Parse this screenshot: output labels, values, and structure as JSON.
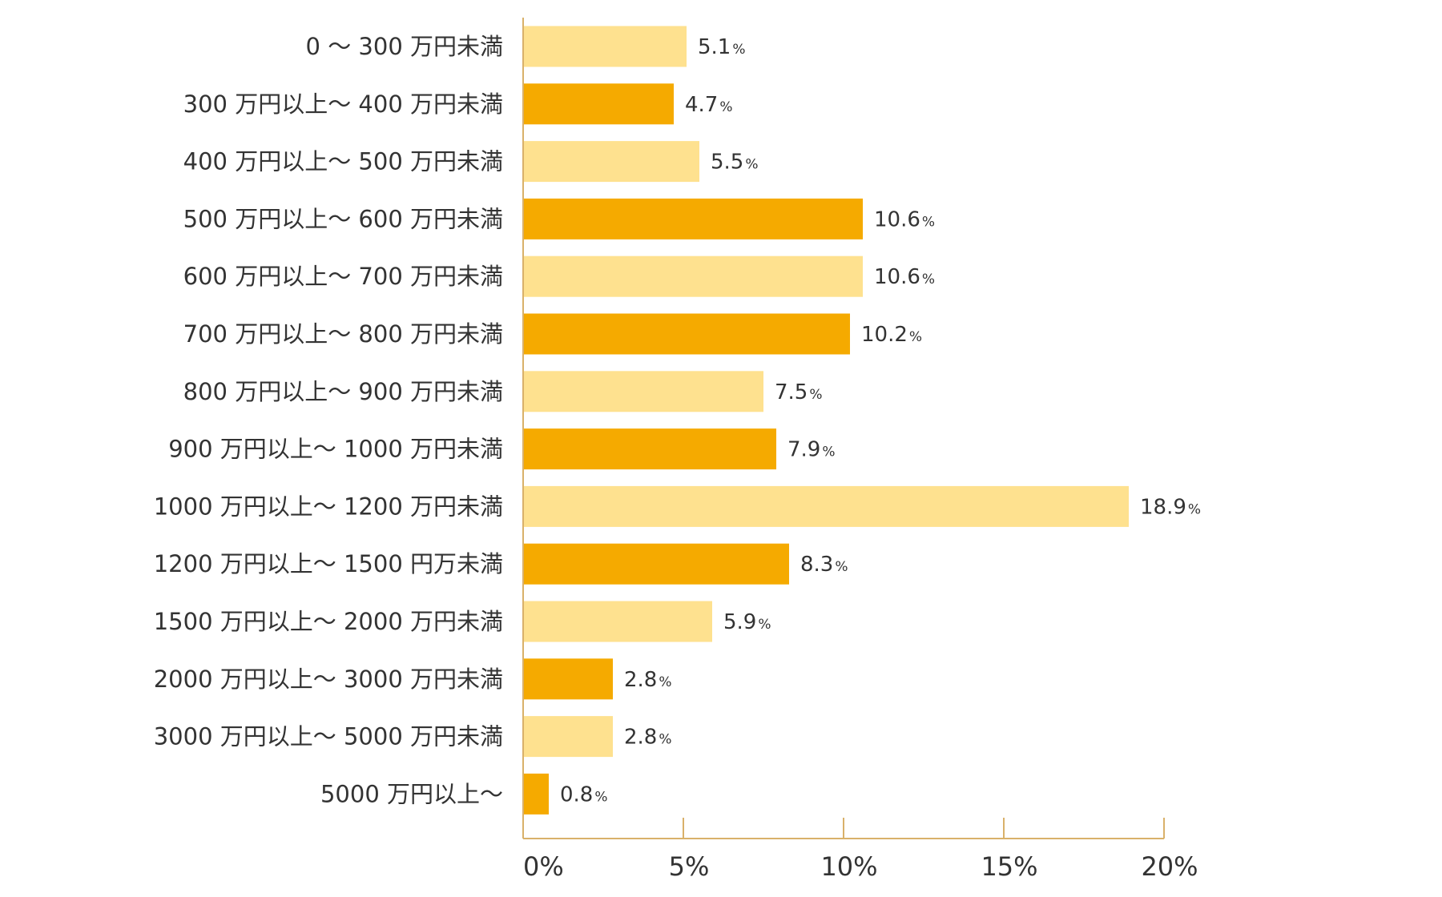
{
  "chart_data": {
    "type": "bar",
    "orientation": "horizontal",
    "categories": [
      "0 〜 300 万円未満",
      "300 万円以上〜 400 万円未満",
      "400 万円以上〜 500 万円未満",
      "500 万円以上〜 600 万円未満",
      "600 万円以上〜 700 万円未満",
      "700 万円以上〜 800 万円未満",
      "800 万円以上〜 900 万円未満",
      "900 万円以上〜 1000 万円未満",
      "1000 万円以上〜 1200 万円未満",
      "1200 万円以上〜 1500 円万未満",
      "1500 万円以上〜 2000 万円未満",
      "2000 万円以上〜 3000 万円未満",
      "3000 万円以上〜 5000 万円未満",
      "5000 万円以上〜"
    ],
    "values": [
      5.1,
      4.7,
      5.5,
      10.6,
      10.6,
      10.2,
      7.5,
      7.9,
      18.9,
      8.3,
      5.9,
      2.8,
      2.8,
      0.8
    ],
    "value_labels": [
      "5.1",
      "4.7",
      "5.5",
      "10.6",
      "10.6",
      "10.2",
      "7.5",
      "7.9",
      "18.9",
      "8.3",
      "5.9",
      "2.8",
      "2.8",
      "0.8"
    ],
    "value_unit": "%",
    "xlim": [
      0,
      20
    ],
    "xticks": [
      0,
      5,
      10,
      15,
      20
    ],
    "xtick_labels": [
      "0%",
      "5%",
      "10%",
      "15%",
      "20%"
    ],
    "grid": false,
    "legend": "none",
    "title": "",
    "xlabel": "",
    "ylabel": "",
    "colors": {
      "bar_light": "#FEE18F",
      "bar_dark": "#F5AA00",
      "axis": "#D9B16A",
      "text": "#333333"
    },
    "color_pattern": [
      "light",
      "dark"
    ]
  }
}
